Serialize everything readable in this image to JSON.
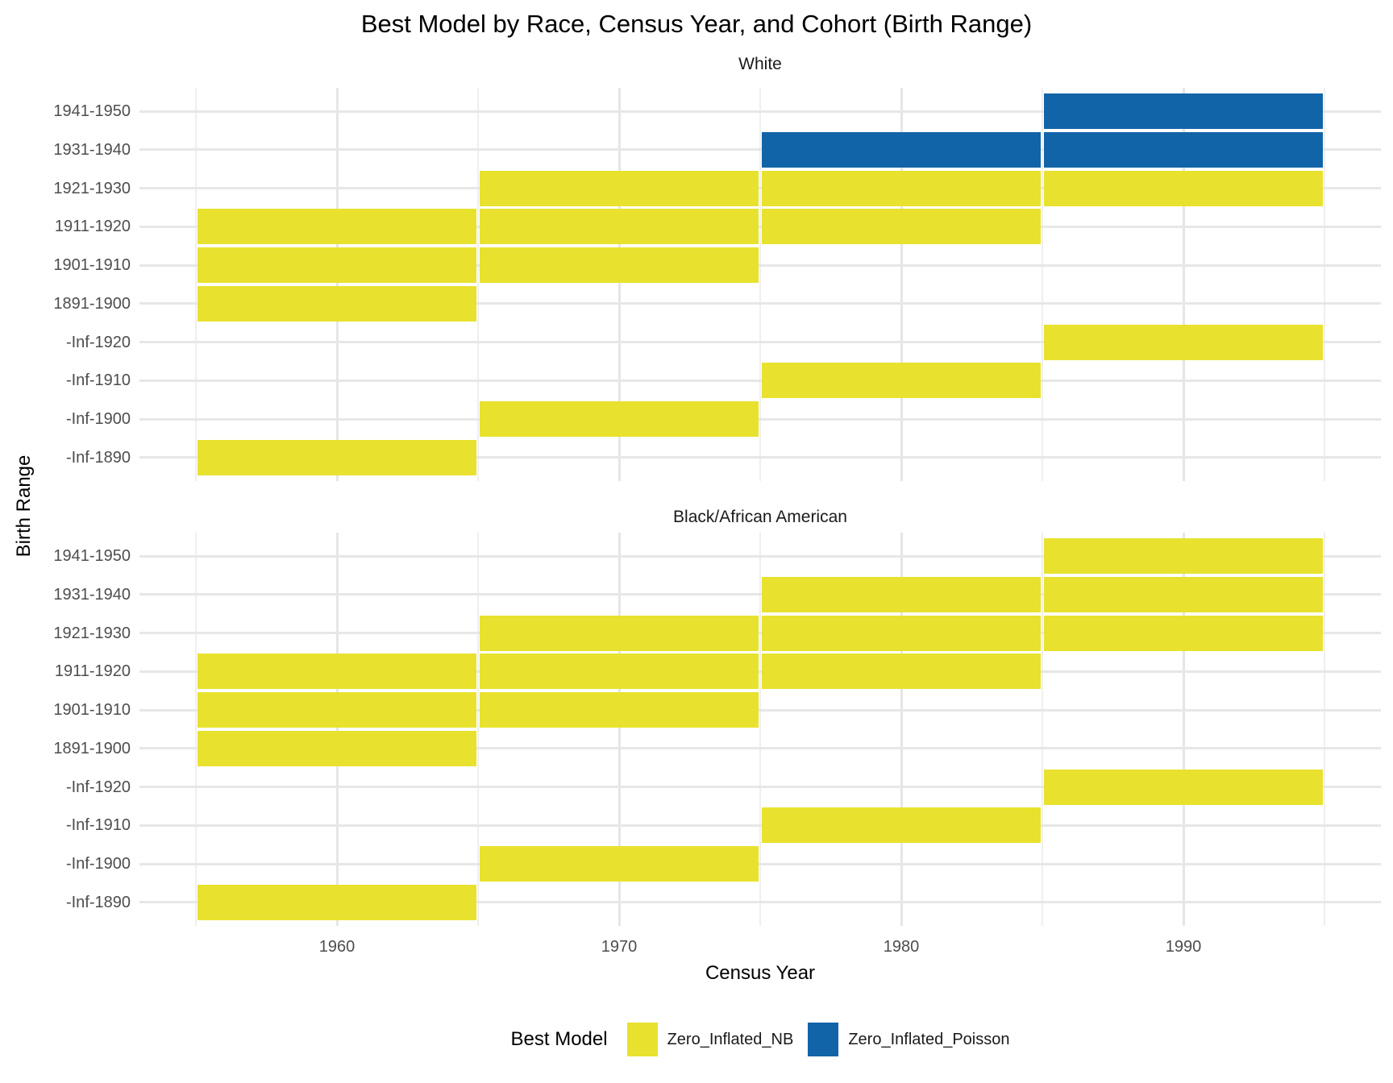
{
  "title": "Best Model by Race, Census Year, and Cohort (Birth Range)",
  "axes": {
    "x_label": "Census Year",
    "y_label": "Birth Range",
    "x_ticks": [
      "1960",
      "1970",
      "1980",
      "1990"
    ],
    "x_tick_years": [
      1960,
      1970,
      1980,
      1990
    ],
    "x_minor_years": [
      1955,
      1965,
      1975,
      1985,
      1995
    ],
    "x_range": [
      1953,
      1997
    ]
  },
  "legend": {
    "title": "Best Model",
    "items": [
      {
        "label": "Zero_Inflated_NB",
        "color": "#e8e22e"
      },
      {
        "label": "Zero_Inflated_Poisson",
        "color": "#1264a8"
      }
    ]
  },
  "chart_data": {
    "type": "heatmap",
    "title": "Best Model by Race, Census Year, and Cohort (Birth Range)",
    "xlabel": "Census Year",
    "ylabel": "Birth Range",
    "x_axis": {
      "ticks": [
        1960,
        1970,
        1980,
        1990
      ],
      "minor_ticks": [
        1955,
        1965,
        1975,
        1985,
        1995
      ],
      "range": [
        1953,
        1997
      ]
    },
    "tile_width_years": 10,
    "colors": {
      "Zero_Inflated_NB": "#e8e22e",
      "Zero_Inflated_Poisson": "#1264a8"
    },
    "cohorts": [
      "1941-1950",
      "1931-1940",
      "1921-1930",
      "1911-1920",
      "1901-1910",
      "1891-1900",
      "-Inf-1920",
      "-Inf-1910",
      "-Inf-1900",
      "-Inf-1890"
    ],
    "facets": [
      {
        "label": "White",
        "rows": [
          {
            "cohort": "1941-1950",
            "tiles": [
              {
                "year": 1990,
                "model": "Zero_Inflated_Poisson"
              }
            ]
          },
          {
            "cohort": "1931-1940",
            "tiles": [
              {
                "year": 1980,
                "model": "Zero_Inflated_Poisson"
              },
              {
                "year": 1990,
                "model": "Zero_Inflated_Poisson"
              }
            ]
          },
          {
            "cohort": "1921-1930",
            "tiles": [
              {
                "year": 1970,
                "model": "Zero_Inflated_NB"
              },
              {
                "year": 1980,
                "model": "Zero_Inflated_NB"
              },
              {
                "year": 1990,
                "model": "Zero_Inflated_NB"
              }
            ]
          },
          {
            "cohort": "1911-1920",
            "tiles": [
              {
                "year": 1960,
                "model": "Zero_Inflated_NB"
              },
              {
                "year": 1970,
                "model": "Zero_Inflated_NB"
              },
              {
                "year": 1980,
                "model": "Zero_Inflated_NB"
              }
            ]
          },
          {
            "cohort": "1901-1910",
            "tiles": [
              {
                "year": 1960,
                "model": "Zero_Inflated_NB"
              },
              {
                "year": 1970,
                "model": "Zero_Inflated_NB"
              }
            ]
          },
          {
            "cohort": "1891-1900",
            "tiles": [
              {
                "year": 1960,
                "model": "Zero_Inflated_NB"
              }
            ]
          },
          {
            "cohort": "-Inf-1920",
            "tiles": [
              {
                "year": 1990,
                "model": "Zero_Inflated_NB"
              }
            ]
          },
          {
            "cohort": "-Inf-1910",
            "tiles": [
              {
                "year": 1980,
                "model": "Zero_Inflated_NB"
              }
            ]
          },
          {
            "cohort": "-Inf-1900",
            "tiles": [
              {
                "year": 1970,
                "model": "Zero_Inflated_NB"
              }
            ]
          },
          {
            "cohort": "-Inf-1890",
            "tiles": [
              {
                "year": 1960,
                "model": "Zero_Inflated_NB"
              }
            ]
          }
        ]
      },
      {
        "label": "Black/African American",
        "rows": [
          {
            "cohort": "1941-1950",
            "tiles": [
              {
                "year": 1990,
                "model": "Zero_Inflated_NB"
              }
            ]
          },
          {
            "cohort": "1931-1940",
            "tiles": [
              {
                "year": 1980,
                "model": "Zero_Inflated_NB"
              },
              {
                "year": 1990,
                "model": "Zero_Inflated_NB"
              }
            ]
          },
          {
            "cohort": "1921-1930",
            "tiles": [
              {
                "year": 1970,
                "model": "Zero_Inflated_NB"
              },
              {
                "year": 1980,
                "model": "Zero_Inflated_NB"
              },
              {
                "year": 1990,
                "model": "Zero_Inflated_NB"
              }
            ]
          },
          {
            "cohort": "1911-1920",
            "tiles": [
              {
                "year": 1960,
                "model": "Zero_Inflated_NB"
              },
              {
                "year": 1970,
                "model": "Zero_Inflated_NB"
              },
              {
                "year": 1980,
                "model": "Zero_Inflated_NB"
              }
            ]
          },
          {
            "cohort": "1901-1910",
            "tiles": [
              {
                "year": 1960,
                "model": "Zero_Inflated_NB"
              },
              {
                "year": 1970,
                "model": "Zero_Inflated_NB"
              }
            ]
          },
          {
            "cohort": "1891-1900",
            "tiles": [
              {
                "year": 1960,
                "model": "Zero_Inflated_NB"
              }
            ]
          },
          {
            "cohort": "-Inf-1920",
            "tiles": [
              {
                "year": 1990,
                "model": "Zero_Inflated_NB"
              }
            ]
          },
          {
            "cohort": "-Inf-1910",
            "tiles": [
              {
                "year": 1980,
                "model": "Zero_Inflated_NB"
              }
            ]
          },
          {
            "cohort": "-Inf-1900",
            "tiles": [
              {
                "year": 1970,
                "model": "Zero_Inflated_NB"
              }
            ]
          },
          {
            "cohort": "-Inf-1890",
            "tiles": [
              {
                "year": 1960,
                "model": "Zero_Inflated_NB"
              }
            ]
          }
        ]
      }
    ]
  }
}
